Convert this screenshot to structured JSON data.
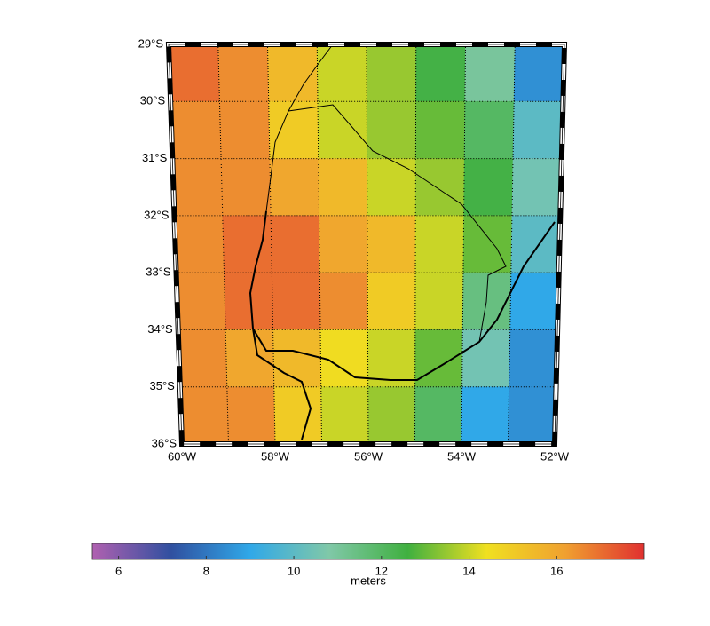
{
  "map": {
    "lonlim": [
      -60,
      -52
    ],
    "latlim": [
      -36,
      -29
    ],
    "latticks": [
      {
        "value": -29,
        "label": "29°S"
      },
      {
        "value": -30,
        "label": "30°S"
      },
      {
        "value": -31,
        "label": "31°S"
      },
      {
        "value": -32,
        "label": "32°S"
      },
      {
        "value": -33,
        "label": "33°S"
      },
      {
        "value": -34,
        "label": "34°S"
      },
      {
        "value": -35,
        "label": "35°S"
      },
      {
        "value": -36,
        "label": "36°S"
      }
    ],
    "lonticks": [
      {
        "value": -60,
        "label": "60°W"
      },
      {
        "value": -58,
        "label": "58°W"
      },
      {
        "value": -56,
        "label": "56°W"
      },
      {
        "value": -54,
        "label": "54°W"
      },
      {
        "value": -52,
        "label": "52°W"
      }
    ],
    "gridlines": [
      -59,
      -58,
      -57,
      -56,
      -55,
      -54,
      -53
    ],
    "field": [
      [
        17,
        16.5,
        15.5,
        14,
        13.5,
        12.5,
        11,
        8.5
      ],
      [
        16.5,
        16.5,
        15,
        14,
        13.5,
        13,
        12,
        10
      ],
      [
        16.5,
        16.5,
        16,
        15.5,
        14,
        13.5,
        12.5,
        10.5
      ],
      [
        16.5,
        17,
        17,
        16,
        15.5,
        14,
        13,
        10
      ],
      [
        16.5,
        17,
        17,
        16.5,
        15,
        14,
        11.5,
        9
      ],
      [
        16.5,
        16,
        15.5,
        14.5,
        14,
        13,
        10.5,
        8.5
      ],
      [
        16.5,
        16.5,
        15,
        14,
        13.5,
        12,
        9,
        8.5
      ]
    ]
  },
  "colorbar": {
    "clim": [
      5.4,
      18
    ],
    "ticks": [
      6,
      8,
      10,
      12,
      14,
      16
    ],
    "label": "meters",
    "colormap": [
      "#b060b0",
      "#3050a0",
      "#30a8e8",
      "#80c8a8",
      "#40b040",
      "#f0e020",
      "#f0a030",
      "#e03030"
    ]
  }
}
